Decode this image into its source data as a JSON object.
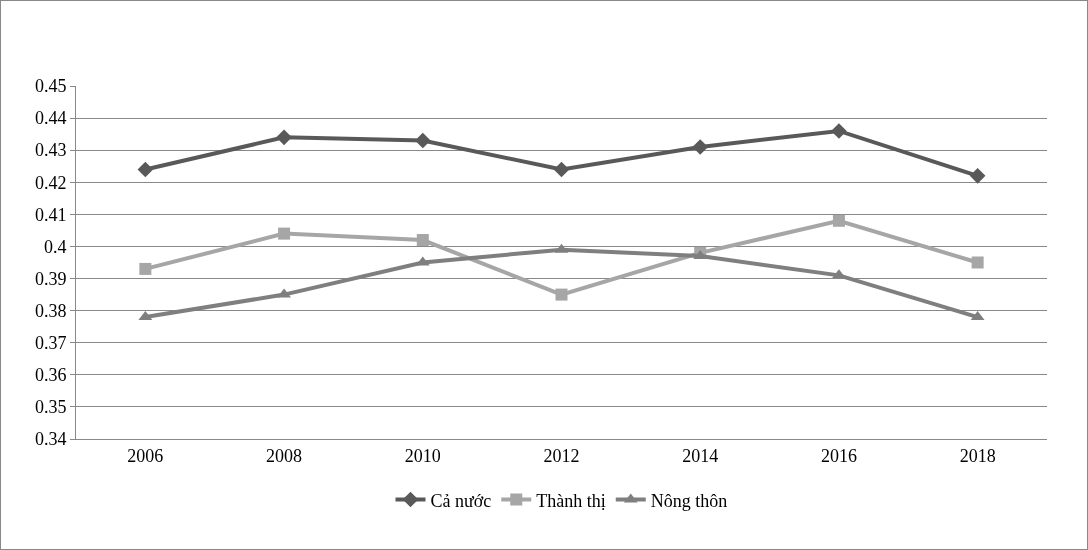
{
  "chart_data": {
    "type": "line",
    "categories": [
      "2006",
      "2008",
      "2010",
      "2012",
      "2014",
      "2016",
      "2018"
    ],
    "series": [
      {
        "name": "Cả nước",
        "color": "#595959",
        "marker": "diamond",
        "values": [
          0.424,
          0.434,
          0.433,
          0.424,
          0.431,
          0.436,
          0.422
        ]
      },
      {
        "name": "Thành thị",
        "color": "#a6a6a6",
        "marker": "square",
        "values": [
          0.393,
          0.404,
          0.402,
          0.385,
          0.398,
          0.408,
          0.395
        ]
      },
      {
        "name": "Nông thôn",
        "color": "#7f7f7f",
        "marker": "triangle",
        "values": [
          0.378,
          0.385,
          0.395,
          0.399,
          0.397,
          0.391,
          0.378
        ]
      }
    ],
    "ylim": [
      0.34,
      0.45
    ],
    "yticks": [
      0.34,
      0.35,
      0.36,
      0.37,
      0.38,
      0.39,
      0.4,
      0.41,
      0.42,
      0.43,
      0.44,
      0.45
    ],
    "grid": "y",
    "legend": "bottom",
    "line_style": "solid"
  }
}
